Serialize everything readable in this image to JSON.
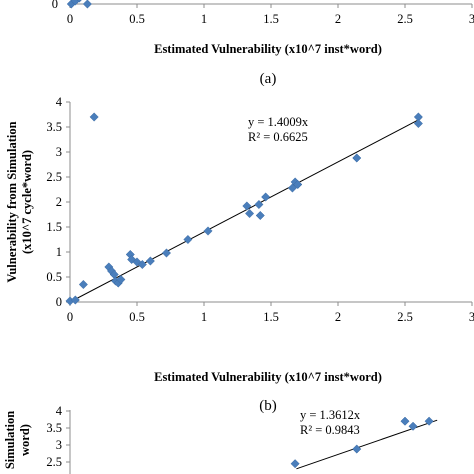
{
  "chart_data": [
    {
      "panel": "a",
      "type": "scatter",
      "caption": "(a)",
      "xlabel": "Estimated Vulnerability (x10^7 inst*word)",
      "x_ticks": [
        "0",
        "0.5",
        "1",
        "1.5",
        "2",
        "2.5",
        "3"
      ],
      "y_ticks": [
        "0"
      ],
      "xlim": [
        0,
        3
      ],
      "points": [
        {
          "x": 0.01,
          "y": 0.0
        },
        {
          "x": 0.04,
          "y": 0.03
        },
        {
          "x": 0.07,
          "y": 0.06
        },
        {
          "x": 0.13,
          "y": 0.0
        }
      ]
    },
    {
      "panel": "b",
      "type": "scatter",
      "caption": "(b)",
      "xlabel": "Estimated Vulnerability (x10^7 inst*word)",
      "ylabel_line1": "Vulnerability from Simulation",
      "ylabel_line2": "(x10^7 cycle*word)",
      "x_ticks": [
        "0",
        "0.5",
        "1",
        "1.5",
        "2",
        "2.5",
        "3"
      ],
      "y_ticks": [
        "0",
        "0.5",
        "1",
        "1.5",
        "2",
        "2.5",
        "3",
        "3.5",
        "4"
      ],
      "xlim": [
        0,
        3
      ],
      "ylim": [
        0,
        4
      ],
      "trendline": {
        "equation": "y = 1.4009x",
        "r2": "R² = 0.6625",
        "slope": 1.4009
      },
      "points": [
        {
          "x": 0.0,
          "y": 0.02
        },
        {
          "x": 0.04,
          "y": 0.04
        },
        {
          "x": 0.1,
          "y": 0.35
        },
        {
          "x": 0.18,
          "y": 3.7
        },
        {
          "x": 0.29,
          "y": 0.7
        },
        {
          "x": 0.31,
          "y": 0.62
        },
        {
          "x": 0.33,
          "y": 0.55
        },
        {
          "x": 0.34,
          "y": 0.42
        },
        {
          "x": 0.36,
          "y": 0.38
        },
        {
          "x": 0.38,
          "y": 0.45
        },
        {
          "x": 0.45,
          "y": 0.95
        },
        {
          "x": 0.46,
          "y": 0.85
        },
        {
          "x": 0.5,
          "y": 0.8
        },
        {
          "x": 0.54,
          "y": 0.75
        },
        {
          "x": 0.6,
          "y": 0.82
        },
        {
          "x": 0.72,
          "y": 0.98
        },
        {
          "x": 0.88,
          "y": 1.25
        },
        {
          "x": 1.03,
          "y": 1.42
        },
        {
          "x": 1.32,
          "y": 1.92
        },
        {
          "x": 1.34,
          "y": 1.77
        },
        {
          "x": 1.41,
          "y": 1.95
        },
        {
          "x": 1.42,
          "y": 1.73
        },
        {
          "x": 1.46,
          "y": 2.1
        },
        {
          "x": 1.66,
          "y": 2.28
        },
        {
          "x": 1.68,
          "y": 2.4
        },
        {
          "x": 1.7,
          "y": 2.35
        },
        {
          "x": 2.14,
          "y": 2.88
        },
        {
          "x": 2.6,
          "y": 3.7
        },
        {
          "x": 2.6,
          "y": 3.57
        }
      ]
    },
    {
      "panel": "c",
      "type": "scatter",
      "ylabel_line1": "Simulation",
      "ylabel_line2": "word)",
      "x_ticks": [],
      "y_ticks": [
        "2.5",
        "3",
        "3.5",
        "4"
      ],
      "xlim": [
        0,
        3
      ],
      "ylim": [
        2.5,
        4
      ],
      "trendline": {
        "equation": "y = 1.3612x",
        "r2": "R² = 0.9843",
        "slope": 1.3612
      },
      "points": [
        {
          "x": 1.68,
          "y": 2.45
        },
        {
          "x": 2.14,
          "y": 2.88
        },
        {
          "x": 2.5,
          "y": 3.7
        },
        {
          "x": 2.56,
          "y": 3.55
        },
        {
          "x": 2.68,
          "y": 3.7
        }
      ]
    }
  ]
}
